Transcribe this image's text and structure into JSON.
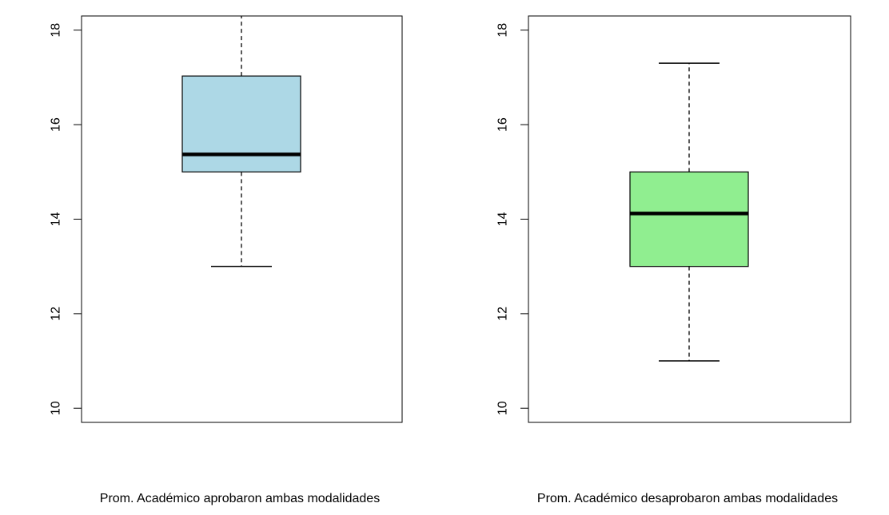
{
  "chart_data": [
    {
      "type": "boxplot",
      "xlabel": "Prom. Académico aprobaron ambas modalidades",
      "ylim": [
        9.7,
        18.3
      ],
      "yticks": [
        10,
        12,
        14,
        16,
        18
      ],
      "grid": false,
      "box": {
        "whisker_low": 13.0,
        "q1": 15.0,
        "median": 15.37,
        "q3": 17.03,
        "whisker_high": 18.3
      },
      "fill_color": "#ADD8E6"
    },
    {
      "type": "boxplot",
      "xlabel": "Prom. Académico desaprobaron ambas modalidades",
      "ylim": [
        9.7,
        18.3
      ],
      "yticks": [
        10,
        12,
        14,
        16,
        18
      ],
      "grid": false,
      "box": {
        "whisker_low": 11.0,
        "q1": 13.0,
        "median": 14.12,
        "q3": 15.0,
        "whisker_high": 17.3
      },
      "fill_color": "#90EE90"
    }
  ]
}
